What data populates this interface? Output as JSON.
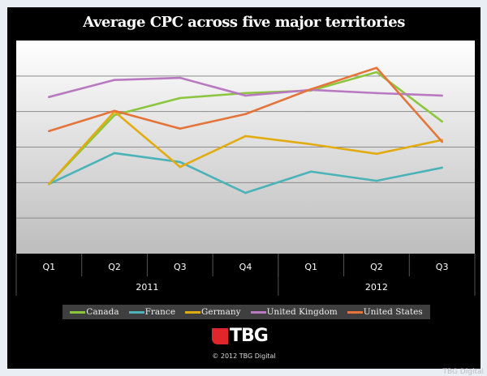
{
  "chart_data": {
    "type": "line",
    "title": "Average CPC across five major territories",
    "categories": [
      "Q1",
      "Q2",
      "Q3",
      "Q4",
      "Q1",
      "Q2",
      "Q3"
    ],
    "groups": [
      {
        "label": "2011",
        "span": 4
      },
      {
        "label": "2012",
        "span": 3
      }
    ],
    "ylim": [
      0,
      6
    ],
    "y_ticks_labeled": false,
    "grid": true,
    "legend": "bottom",
    "series": [
      {
        "name": "Canada",
        "color": "#8cc63f",
        "values": [
          1.96,
          3.9,
          4.38,
          4.52,
          4.59,
          5.11,
          3.72
        ]
      },
      {
        "name": "France",
        "color": "#4bb3b8",
        "values": [
          1.96,
          2.83,
          2.58,
          1.71,
          2.31,
          2.05,
          2.42
        ]
      },
      {
        "name": "Germany",
        "color": "#e3ab12",
        "values": [
          1.96,
          4.0,
          2.44,
          3.31,
          3.08,
          2.81,
          3.2
        ]
      },
      {
        "name": "United Kingdom",
        "color": "#b879c0",
        "values": [
          4.41,
          4.89,
          4.95,
          4.45,
          4.61,
          4.52,
          4.45
        ]
      },
      {
        "name": "United States",
        "color": "#e4743a",
        "values": [
          3.45,
          4.02,
          3.52,
          3.93,
          4.63,
          5.23,
          3.15
        ]
      }
    ]
  },
  "logo_text": "TBG",
  "copyright": "© 2012 TBG Digital",
  "credit": "TBG Digital"
}
